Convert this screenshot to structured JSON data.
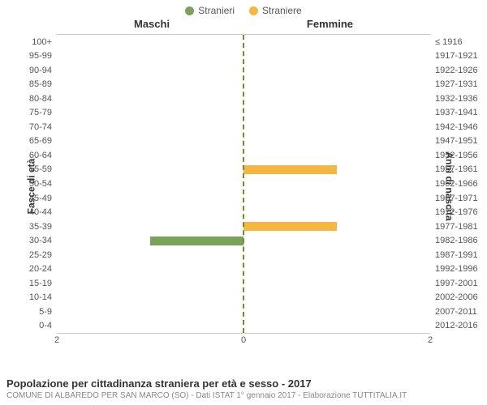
{
  "legend": {
    "items": [
      {
        "label": "Stranieri",
        "color": "#7aa35a"
      },
      {
        "label": "Straniere",
        "color": "#f5b642"
      }
    ]
  },
  "columns": {
    "left": "Maschi",
    "right": "Femmine"
  },
  "yaxis": {
    "left": "Fasce di età",
    "right": "Anni di nascita"
  },
  "chart": {
    "type": "population-pyramid",
    "x_max": 2,
    "x_ticks_left": [
      2,
      0
    ],
    "x_ticks_right": [
      0,
      2
    ],
    "male_color": "#7aa35a",
    "female_color": "#f5b642",
    "plot_border_color": "#cccccc",
    "center_line_color": "#7a8a2a",
    "background_color": "#ffffff",
    "label_color": "#555555",
    "label_fontsize": 11,
    "rows": [
      {
        "age": "100+",
        "birth": "≤ 1916",
        "m": 0,
        "f": 0
      },
      {
        "age": "95-99",
        "birth": "1917-1921",
        "m": 0,
        "f": 0
      },
      {
        "age": "90-94",
        "birth": "1922-1926",
        "m": 0,
        "f": 0
      },
      {
        "age": "85-89",
        "birth": "1927-1931",
        "m": 0,
        "f": 0
      },
      {
        "age": "80-84",
        "birth": "1932-1936",
        "m": 0,
        "f": 0
      },
      {
        "age": "75-79",
        "birth": "1937-1941",
        "m": 0,
        "f": 0
      },
      {
        "age": "70-74",
        "birth": "1942-1946",
        "m": 0,
        "f": 0
      },
      {
        "age": "65-69",
        "birth": "1947-1951",
        "m": 0,
        "f": 0
      },
      {
        "age": "60-64",
        "birth": "1952-1956",
        "m": 0,
        "f": 0
      },
      {
        "age": "55-59",
        "birth": "1957-1961",
        "m": 0,
        "f": 1
      },
      {
        "age": "50-54",
        "birth": "1962-1966",
        "m": 0,
        "f": 0
      },
      {
        "age": "45-49",
        "birth": "1967-1971",
        "m": 0,
        "f": 0
      },
      {
        "age": "40-44",
        "birth": "1972-1976",
        "m": 0,
        "f": 0
      },
      {
        "age": "35-39",
        "birth": "1977-1981",
        "m": 0,
        "f": 1
      },
      {
        "age": "30-34",
        "birth": "1982-1986",
        "m": 1,
        "f": 0
      },
      {
        "age": "25-29",
        "birth": "1987-1991",
        "m": 0,
        "f": 0
      },
      {
        "age": "20-24",
        "birth": "1992-1996",
        "m": 0,
        "f": 0
      },
      {
        "age": "15-19",
        "birth": "1997-2001",
        "m": 0,
        "f": 0
      },
      {
        "age": "10-14",
        "birth": "2002-2006",
        "m": 0,
        "f": 0
      },
      {
        "age": "5-9",
        "birth": "2007-2011",
        "m": 0,
        "f": 0
      },
      {
        "age": "0-4",
        "birth": "2012-2016",
        "m": 0,
        "f": 0
      }
    ]
  },
  "footer": {
    "title": "Popolazione per cittadinanza straniera per età e sesso - 2017",
    "sub": "COMUNE DI ALBAREDO PER SAN MARCO (SO) - Dati ISTAT 1° gennaio 2017 - Elaborazione TUTTITALIA.IT"
  }
}
